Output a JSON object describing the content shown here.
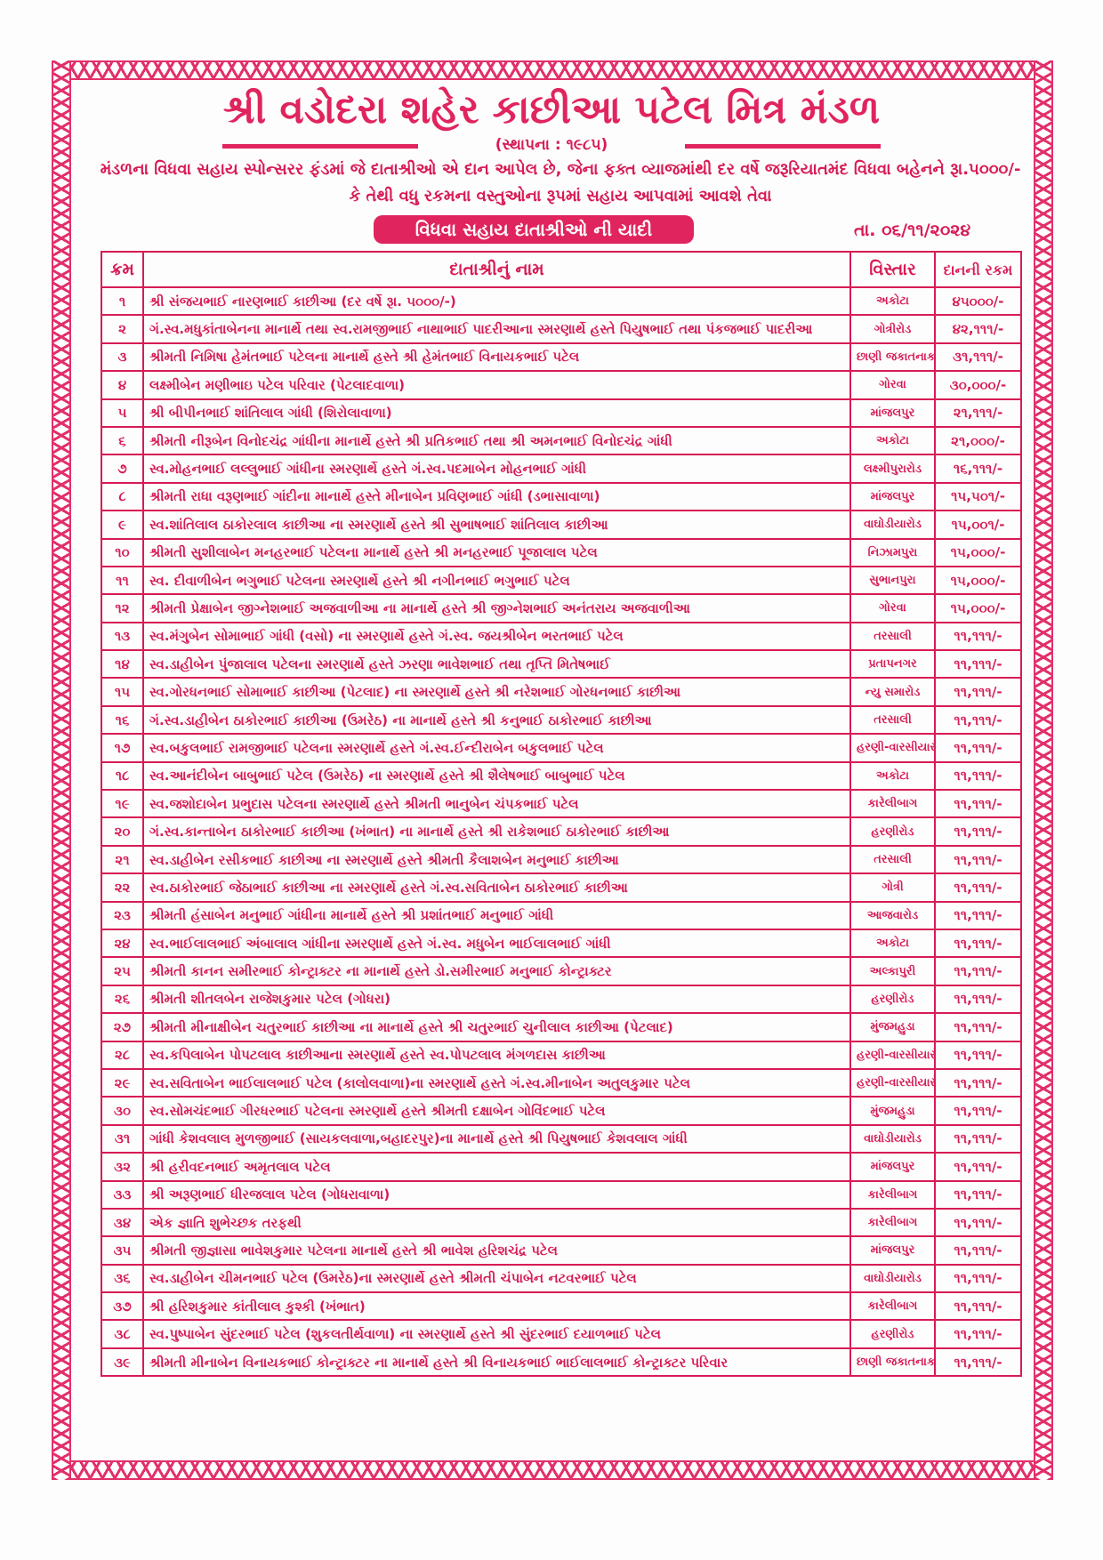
{
  "header": {
    "title": "શ્રી વડોદરા શહેર કાછીઆ પટેલ મિત્ર મંડળ",
    "founded": "(સ્થાપના : ૧૯૮૫)",
    "description_line1": "મંડળના વિધવા સહાય સ્પોન્સરર ફંડમાં જે દાતાશ્રીઓ એ દાન આપેલ છે, જેના ફક્ત વ્યાજમાંથી દર વર્ષે જરૂરિયાતમંદ વિધવા બહેનને રૂા.૫૦૦૦/-",
    "description_line2": "કે તેથી વધુ રકમના વસ્તુઓના રૂપમાં સહાય આપવામાં આવશે તેવા",
    "list_title": "વિધવા સહાય દાતાશ્રીઓ ની યાદી",
    "date": "તા. ૦૬/૧૧/૨૦૨૪"
  },
  "colors": {
    "primary": "#d81b55",
    "border_pattern": "#e2306a"
  },
  "table": {
    "columns": [
      "ક્રમ",
      "દાતાશ્રીનું નામ",
      "વિસ્તાર",
      "દાનની રકમ"
    ],
    "rows": [
      [
        "૧",
        "શ્રી સંજયભાઈ નારણભાઈ કાછીઆ   (દર વર્ષે રૂા. ૫૦૦૦/-)",
        "અકોટા",
        "૪૫૦૦૦/-"
      ],
      [
        "૨",
        "ગં.સ્વ.મધુકાંતાબેનના માનાર્થે તથા સ્વ.રામજીભાઈ નાથાભાઈ પાદરીઆના સ્મરણાર્થે હસ્તે પિયુષભાઈ તથા પંકજભાઈ પાદરીઆ",
        "ગોત્રીરોડ",
        "૪૨,૧૧૧/-"
      ],
      [
        "૩",
        "શ્રીમતી નિમિષા હેમંતભાઈ પટેલના માનાર્થે હસ્તે શ્રી હેમંતભાઈ વિનાયકભાઈ પટેલ",
        "છાણી જકાતનાકા",
        "૩૧,૧૧૧/-"
      ],
      [
        "૪",
        "લક્ષ્મીબેન મણીભાઇ પટેલ પરિવાર (પેટલાદવાળા)",
        "ગોરવા",
        "૩૦,૦૦૦/-"
      ],
      [
        "૫",
        "શ્રી બીપીનભાઈ શાંતિલાલ ગાંધી (શિરોલાવાળા)",
        "માંજલપુર",
        "૨૧,૧૧૧/-"
      ],
      [
        "૬",
        "શ્રીમતી નીરૂબેન વિનોદચંદ્ર ગાંધીના માનાર્થે હસ્તે શ્રી પ્રતિકભાઈ તથા શ્રી અમનભાઈ વિનોદચંદ્ર ગાંધી",
        "અકોટા",
        "૨૧,૦૦૦/-"
      ],
      [
        "૭",
        "સ્વ.મોહનભાઈ લલ્લુભાઈ ગાંધીના સ્મરણાર્થે હસ્તે ગં.સ્વ.પદમાબેન મોહનભાઈ ગાંધી",
        "લક્ષ્મીપુરારોડ",
        "૧૬,૧૧૧/-"
      ],
      [
        "૮",
        "શ્રીમતી રાધા વરૂણભાઈ ગાંદીના માનાર્થે હસ્તે મીનાબેન પ્રવિણભાઈ ગાંધી (ડભાસાવાળા)",
        "માંજલપુર",
        "૧૫,૫૦૧/-"
      ],
      [
        "૯",
        "સ્વ.શાંતિલાલ ઠાકોરલાલ કાછીઆ ના સ્મરણાર્થે હસ્તે શ્રી સુભાષભાઈ શાંતિલાલ કાછીઆ",
        "વાઘોડીયારોડ",
        "૧૫,૦૦૧/-"
      ],
      [
        "૧૦",
        "શ્રીમતી સુશીલાબેન મનહરભાઈ પટેલના માનાર્થે હસ્તે શ્રી મનહરભાઈ પૂજાલાલ પટેલ",
        "નિઝામપુરા",
        "૧૫,૦૦૦/-"
      ],
      [
        "૧૧",
        "સ્વ. દીવાળીબેન ભગુભાઈ પટેલના સ્મરણાર્થે હસ્તે શ્રી નગીનભાઈ ભગુભાઈ પટેલ",
        "સુભાનપુરા",
        "૧૫,૦૦૦/-"
      ],
      [
        "૧૨",
        "શ્રીમતી પ્રેક્ષાબેન જીગ્નેશભાઈ અજવાળીઆ ના માનાર્થે હસ્તે શ્રી જીગ્નેશભાઈ અનંતરાય અજવાળીઆ",
        "ગોરવા",
        "૧૫,૦૦૦/-"
      ],
      [
        "૧૩",
        "સ્વ.મંગુબેન સોમાભાઈ ગાંધી (વસો) ના સ્મરણાર્થે હસ્તે ગં.સ્વ. જયશ્રીબેન ભરતભાઈ પટેલ",
        "તરસાલી",
        "૧૧,૧૧૧/-"
      ],
      [
        "૧૪",
        "સ્વ.ડાહીબેન પુંજાલાલ પટેલના સ્મરણાર્થે હસ્તે ઝરણા ભાવેશભાઈ તથા તૃપ્તિ મિતેષભાઈ",
        "પ્રતાપનગર",
        "૧૧,૧૧૧/-"
      ],
      [
        "૧૫",
        "સ્વ.ગોરધનભાઈ સોમાભાઈ કાછીઆ (પેટલાદ) ના સ્મરણાર્થે હસ્તે શ્રી નરેશભાઈ ગોરધનભાઈ કાછીઆ",
        "ન્યુ સમારોડ",
        "૧૧,૧૧૧/-"
      ],
      [
        "૧૬",
        "ગં.સ્વ.ડાહીબેન ઠાકોરભાઈ કાછીઆ (ઉમરેઠ) ના માનાર્થે હસ્તે શ્રી કનુભાઈ ઠાકોરભાઈ કાછીઆ",
        "તરસાલી",
        "૧૧,૧૧૧/-"
      ],
      [
        "૧૭",
        "સ્વ.બકુલભાઈ રામજીભાઈ પટેલના સ્મરણાર્થે હસ્તે ગં.સ્વ.ઈન્દીરાબેન બકુલભાઈ પટેલ",
        "હરણી-વારસીયારોડ",
        "૧૧,૧૧૧/-"
      ],
      [
        "૧૮",
        "સ્વ.આનંદીબેન બાબુભાઈ પટેલ (ઉમરેઠ) ના સ્મરણાર્થે હસ્તે શ્રી શૈલેષભાઈ બાબુભાઈ પટેલ",
        "અકોટા",
        "૧૧,૧૧૧/-"
      ],
      [
        "૧૯",
        "સ્વ.જશોદાબેન પ્રભુદાસ પટેલના સ્મરણાર્થે હસ્તે શ્રીમતી ભાનુબેન ચંપકભાઈ પટેલ",
        "કારેલીબાગ",
        "૧૧,૧૧૧/-"
      ],
      [
        "૨૦",
        "ગં.સ્વ.કાન્તાબેન ઠાકોરભાઈ કાછીઆ (ખંભાત) ના માનાર્થે હસ્તે શ્રી રાકેશભાઈ ઠાકોરભાઈ કાછીઆ",
        "હરણીરોડ",
        "૧૧,૧૧૧/-"
      ],
      [
        "૨૧",
        "સ્વ.ડાહીબેન રસીકભાઈ કાછીઆ ના સ્મરણાર્થે હસ્તે શ્રીમતી કૈલાશબેન મનુભાઈ કાછીઆ",
        "તરસાલી",
        "૧૧,૧૧૧/-"
      ],
      [
        "૨૨",
        "સ્વ.ઠાકોરભાઈ જેઠાભાઈ કાછીઆ ના સ્મરણાર્થે હસ્તે ગં.સ્વ.સવિતાબેન ઠાકોરભાઈ કાછીઆ",
        "ગોત્રી",
        "૧૧,૧૧૧/-"
      ],
      [
        "૨૩",
        "શ્રીમતી હંસાબેન મનુભાઈ ગાંધીના માનાર્થે હસ્તે શ્રી પ્રશાંતભાઈ મનુભાઈ ગાંધી",
        "આજવારોડ",
        "૧૧,૧૧૧/-"
      ],
      [
        "૨૪",
        "સ્વ.ભાઈલાલભાઈ અંબાલાલ ગાંધીના સ્મરણાર્થે હસ્તે ગં.સ્વ. મધુબેન ભાઈલાલભાઈ ગાંધી",
        "અકોટા",
        "૧૧,૧૧૧/-"
      ],
      [
        "૨૫",
        "શ્રીમતી કાનન સમીરભાઈ કોન્ટ્રાક્ટર ના માનાર્થે હસ્તે ડો.સમીરભાઈ મનુભાઈ કોન્ટ્રાક્ટર",
        "અલ્કાપુરી",
        "૧૧,૧૧૧/-"
      ],
      [
        "૨૬",
        "શ્રીમતી શીતલબેન રાજેશકુમાર પટેલ (ગોધરા)",
        "હરણીરોડ",
        "૧૧,૧૧૧/-"
      ],
      [
        "૨૭",
        "શ્રીમતી મીનાક્ષીબેન ચતુરભાઈ કાછીઆ ના માનાર્થે હસ્તે શ્રી ચતુરભાઈ ચુનીલાલ કાછીઆ (પેટલાદ)",
        "મુંજમહુડા",
        "૧૧,૧૧૧/-"
      ],
      [
        "૨૮",
        "સ્વ.કપિલાબેન પોપટલાલ કાછીઆના સ્મરણાર્થે હસ્તે સ્વ.પોપટલાલ મંગળદાસ કાછીઆ",
        "હરણી-વારસીયારોડ",
        "૧૧,૧૧૧/-"
      ],
      [
        "૨૯",
        "સ્વ.સવિતાબેન ભાઈલાલભાઈ પટેલ (કાલોલવાળા)ના સ્મરણાર્થે હસ્તે ગં.સ્વ.મીનાબેન અતુલકુમાર પટેલ",
        "હરણી-વારસીયારોડ",
        "૧૧,૧૧૧/-"
      ],
      [
        "૩૦",
        "સ્વ.સોમચંદભાઈ ગીરધરભાઈ પટેલના સ્મરણાર્થે હસ્તે શ્રીમતી દક્ષાબેન ગોવિંદભાઈ પટેલ",
        "મુંજમહુડા",
        "૧૧,૧૧૧/-"
      ],
      [
        "૩૧",
        "ગાંધી કેશવલાલ મુળજીભાઈ (સાયકલવાળા,બહાદરપુર)ના માનાર્થે હસ્તે શ્રી પિયુષભાઈ કેશવલાલ ગાંધી",
        "વાઘોડીયારોડ",
        "૧૧,૧૧૧/-"
      ],
      [
        "૩૨",
        "શ્રી હરીવદનભાઈ અમૃતલાલ પટેલ",
        "માંજલપુર",
        "૧૧,૧૧૧/-"
      ],
      [
        "૩૩",
        "શ્રી અરૂણભાઈ ધીરજલાલ પટેલ (ગોધરાવાળા)",
        "કારેલીબાગ",
        "૧૧,૧૧૧/-"
      ],
      [
        "૩૪",
        "એક જ્ઞાતિ શુભેચ્છક તરફથી",
        "કારેલીબાગ",
        "૧૧,૧૧૧/-"
      ],
      [
        "૩૫",
        "શ્રીમતી જીજ્ઞાસા ભાવેશકુમાર પટેલના માનાર્થે હસ્તે શ્રી ભાવેશ હરિશચંદ્ર પટેલ",
        "માંજલપુર",
        "૧૧,૧૧૧/-"
      ],
      [
        "૩૬",
        "સ્વ.ડાહીબેન ચીમનભાઈ પટેલ (ઉમરેઠ)ના સ્મરણાર્થે હસ્તે શ્રીમતી ચંપાબેન નટવરભાઈ પટેલ",
        "વાઘોડીયારોડ",
        "૧૧,૧૧૧/-"
      ],
      [
        "૩૭",
        "શ્રી હરિશકુમાર કાંતીલાલ કુશ્કી (ખંભાત)",
        "કારેલીબાગ",
        "૧૧,૧૧૧/-"
      ],
      [
        "૩૮",
        "સ્વ.પુષ્પાબેન સુંદરભાઈ પટેલ (શુકલતીર્થવાળા) ના સ્મરણાર્થે હસ્તે શ્રી સુંદરભાઈ દયાળભાઈ પટેલ",
        "હરણીરોડ",
        "૧૧,૧૧૧/-"
      ],
      [
        "૩૯",
        "શ્રીમતી મીનાબેન વિનાયકભાઈ કોન્ટ્રાક્ટર ના માનાર્થે હસ્તે શ્રી વિનાયકભાઈ ભાઈલાલભાઈ કોન્ટ્રાક્ટર પરિવાર",
        "છાણી જકાતનાકા",
        "૧૧,૧૧૧/-"
      ]
    ]
  }
}
